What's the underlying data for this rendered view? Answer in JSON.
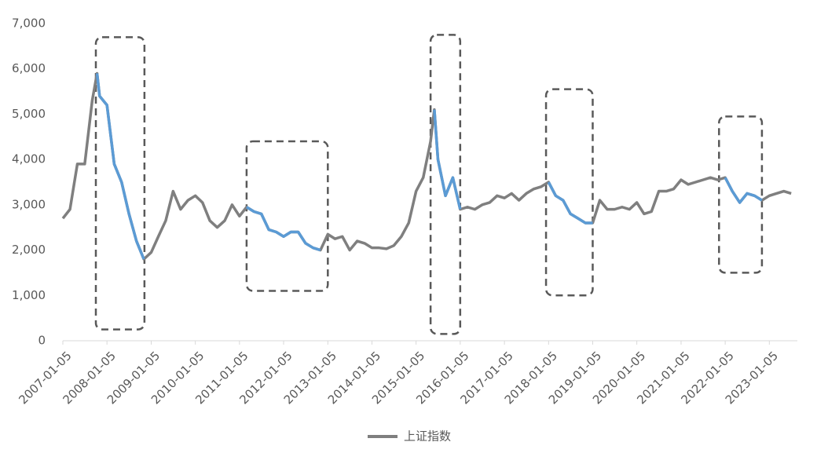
{
  "chart_data": {
    "type": "line",
    "x": [
      "2007-01-05",
      "2007-03-05",
      "2007-05-05",
      "2007-07-05",
      "2007-09-05",
      "2007-10-15",
      "2007-11-05",
      "2008-01-05",
      "2008-03-05",
      "2008-05-05",
      "2008-07-05",
      "2008-09-05",
      "2008-11-05",
      "2009-01-05",
      "2009-03-05",
      "2009-05-05",
      "2009-07-05",
      "2009-09-05",
      "2009-11-05",
      "2010-01-05",
      "2010-03-05",
      "2010-05-05",
      "2010-07-05",
      "2010-09-05",
      "2010-11-05",
      "2011-01-05",
      "2011-03-05",
      "2011-05-05",
      "2011-07-05",
      "2011-09-05",
      "2011-11-05",
      "2012-01-05",
      "2012-03-05",
      "2012-05-05",
      "2012-07-05",
      "2012-09-05",
      "2012-11-05",
      "2013-01-05",
      "2013-03-05",
      "2013-05-05",
      "2013-07-05",
      "2013-09-05",
      "2013-11-05",
      "2014-01-05",
      "2014-03-05",
      "2014-05-05",
      "2014-07-05",
      "2014-09-05",
      "2014-11-05",
      "2015-01-05",
      "2015-03-05",
      "2015-05-05",
      "2015-06-05",
      "2015-07-05",
      "2015-09-05",
      "2015-11-05",
      "2016-01-05",
      "2016-03-05",
      "2016-05-05",
      "2016-07-05",
      "2016-09-05",
      "2016-11-05",
      "2017-01-05",
      "2017-03-05",
      "2017-05-05",
      "2017-07-05",
      "2017-09-05",
      "2017-11-05",
      "2018-01-05",
      "2018-03-05",
      "2018-05-05",
      "2018-07-05",
      "2018-09-05",
      "2018-11-05",
      "2019-01-05",
      "2019-03-05",
      "2019-05-05",
      "2019-07-05",
      "2019-09-05",
      "2019-11-05",
      "2020-01-05",
      "2020-03-05",
      "2020-05-05",
      "2020-07-05",
      "2020-09-05",
      "2020-11-05",
      "2021-01-05",
      "2021-03-05",
      "2021-05-05",
      "2021-07-05",
      "2021-09-05",
      "2021-11-05",
      "2022-01-05",
      "2022-03-05",
      "2022-05-05",
      "2022-07-05",
      "2022-09-05",
      "2022-11-05",
      "2023-01-05",
      "2023-03-05",
      "2023-05-05",
      "2023-07-05"
    ],
    "series": [
      {
        "name": "上证指数",
        "color": "#7f7f7f",
        "values": [
          2700,
          2900,
          3900,
          3900,
          5300,
          5900,
          5400,
          5200,
          3900,
          3500,
          2800,
          2200,
          1800,
          1950,
          2300,
          2650,
          3300,
          2900,
          3100,
          3200,
          3050,
          2650,
          2500,
          2650,
          3000,
          2750,
          2950,
          2850,
          2800,
          2450,
          2400,
          2300,
          2400,
          2400,
          2150,
          2050,
          2000,
          2350,
          2250,
          2300,
          2000,
          2200,
          2150,
          2050,
          2050,
          2030,
          2100,
          2300,
          2600,
          3300,
          3600,
          4400,
          5100,
          4000,
          3200,
          3600,
          2900,
          2950,
          2900,
          3000,
          3050,
          3200,
          3150,
          3250,
          3100,
          3250,
          3350,
          3400,
          3500,
          3200,
          3100,
          2800,
          2700,
          2600,
          2600,
          3100,
          2900,
          2900,
          2950,
          2900,
          3050,
          2800,
          2850,
          3300,
          3300,
          3350,
          3550,
          3450,
          3500,
          3550,
          3600,
          3550,
          3600,
          3300,
          3050,
          3250,
          3200,
          3100,
          3200,
          3250,
          3300,
          3250
        ]
      }
    ],
    "highlight_color": "#5b9bd5",
    "highlight_ranges": [
      [
        "2007-10-15",
        "2008-11-05"
      ],
      [
        "2011-03-05",
        "2012-11-05"
      ],
      [
        "2015-06-05",
        "2016-01-05"
      ],
      [
        "2018-01-05",
        "2019-01-05"
      ],
      [
        "2022-01-05",
        "2022-11-05"
      ]
    ],
    "boxes": [
      {
        "x": [
          "2007-10-05",
          "2008-11-10"
        ],
        "y": [
          250,
          6700
        ]
      },
      {
        "x": [
          "2011-03-05",
          "2013-01-05"
        ],
        "y": [
          1100,
          4400
        ]
      },
      {
        "x": [
          "2015-05-05",
          "2016-01-05"
        ],
        "y": [
          150,
          6750
        ]
      },
      {
        "x": [
          "2017-12-15",
          "2019-01-05"
        ],
        "y": [
          1000,
          5550
        ]
      },
      {
        "x": [
          "2021-11-15",
          "2022-11-05"
        ],
        "y": [
          1500,
          4950
        ]
      }
    ],
    "xlim": [
      "2007-01-05",
      "2023-08-25"
    ],
    "xticks": [
      "2007-01-05",
      "2008-01-05",
      "2009-01-05",
      "2010-01-05",
      "2011-01-05",
      "2012-01-05",
      "2013-01-05",
      "2014-01-05",
      "2015-01-05",
      "2016-01-05",
      "2017-01-05",
      "2018-01-05",
      "2019-01-05",
      "2020-01-05",
      "2021-01-05",
      "2022-01-05",
      "2023-01-05"
    ],
    "ylim": [
      0,
      7000
    ],
    "yticks": [
      0,
      {
        "value": 1000,
        "label": "1,000"
      },
      {
        "value": 2000,
        "label": "2,000"
      },
      {
        "value": 3000,
        "label": "3,000"
      },
      {
        "value": 4000,
        "label": "4,000"
      },
      {
        "value": 5000,
        "label": "5,000"
      },
      {
        "value": 6000,
        "label": "6,000"
      },
      {
        "value": 7000,
        "label": "7,000"
      }
    ],
    "legend": "bottom"
  }
}
